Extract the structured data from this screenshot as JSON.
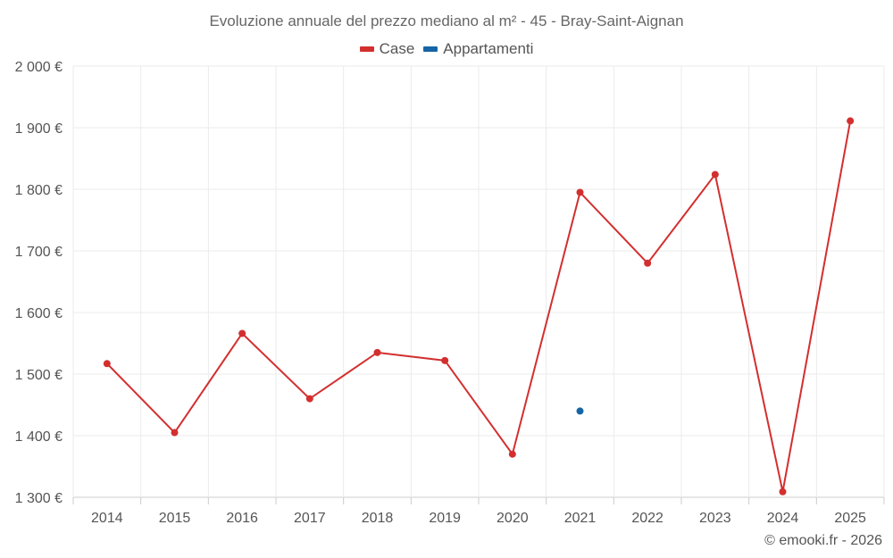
{
  "chart_data": {
    "type": "line",
    "title": "Evoluzione annuale del prezzo mediano al m² - 45 - Bray-Saint-Aignan",
    "xlabel": "",
    "ylabel": "",
    "categories": [
      "2014",
      "2015",
      "2016",
      "2017",
      "2018",
      "2019",
      "2020",
      "2021",
      "2022",
      "2023",
      "2024",
      "2025"
    ],
    "series": [
      {
        "name": "Case",
        "color": "#d32f2f",
        "values": [
          1517,
          1405,
          1566,
          1460,
          1535,
          1522,
          1370,
          1795,
          1680,
          1824,
          1309,
          1911
        ]
      },
      {
        "name": "Appartamenti",
        "color": "#1565a6",
        "values": [
          null,
          null,
          null,
          null,
          null,
          null,
          null,
          1440,
          null,
          null,
          null,
          null
        ]
      }
    ],
    "ylim": [
      1300,
      2000
    ],
    "yticks": [
      1300,
      1400,
      1500,
      1600,
      1700,
      1800,
      1900,
      2000
    ],
    "ytick_labels": [
      "1 300 €",
      "1 400 €",
      "1 500 €",
      "1 600 €",
      "1 700 €",
      "1 800 €",
      "1 900 €",
      "2 000 €"
    ],
    "grid": true,
    "legend_position": "top-center"
  },
  "credit": "© emooki.fr - 2026"
}
